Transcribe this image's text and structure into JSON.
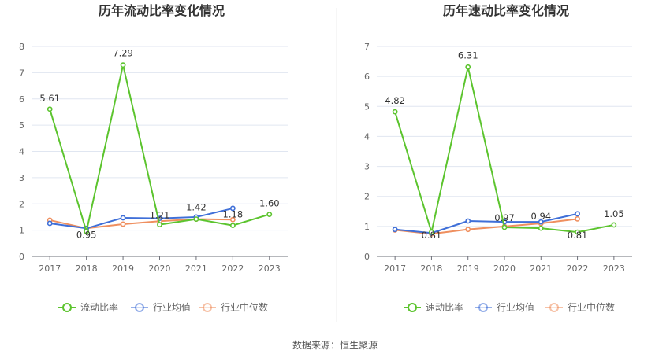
{
  "source_text": "数据来源：恒生聚源",
  "colors": {
    "main": "#5cc42e",
    "avg": "#3f6fd8",
    "median": "#ef8f5f",
    "grid": "#e0e6f1"
  },
  "chart_data": [
    {
      "type": "line",
      "title": "历年流动比率变化情况",
      "categories": [
        "2017",
        "2018",
        "2019",
        "2020",
        "2021",
        "2022",
        "2023"
      ],
      "ylim": [
        0,
        8
      ],
      "yticks": [
        0,
        1,
        2,
        3,
        4,
        5,
        6,
        7,
        8
      ],
      "series": [
        {
          "name": "流动比率",
          "key": "main",
          "values": [
            5.61,
            0.95,
            7.29,
            1.21,
            1.42,
            1.18,
            1.6
          ],
          "labels": [
            "5.61",
            "0.95",
            "7.29",
            "1.21",
            "1.42",
            "1.18",
            "1.60"
          ]
        },
        {
          "name": "行业均值",
          "key": "avg",
          "values": [
            1.26,
            1.07,
            1.47,
            1.45,
            1.5,
            1.83,
            null
          ]
        },
        {
          "name": "行业中位数",
          "key": "median",
          "values": [
            1.38,
            1.07,
            1.23,
            1.34,
            1.42,
            1.4,
            null
          ]
        }
      ],
      "legend_position": "bottom",
      "grid": true
    },
    {
      "type": "line",
      "title": "历年速动比率变化情况",
      "categories": [
        "2017",
        "2018",
        "2019",
        "2020",
        "2021",
        "2022",
        "2023"
      ],
      "ylim": [
        0,
        7
      ],
      "yticks": [
        0,
        1,
        2,
        3,
        4,
        5,
        6,
        7
      ],
      "series": [
        {
          "name": "速动比率",
          "key": "main",
          "values": [
            4.82,
            0.81,
            6.31,
            0.97,
            0.94,
            0.81,
            1.05
          ],
          "labels": [
            "4.82",
            "0.81",
            "6.31",
            "0.97",
            "0.94",
            "0.81",
            "1.05"
          ]
        },
        {
          "name": "行业均值",
          "key": "avg",
          "values": [
            0.9,
            0.78,
            1.18,
            1.15,
            1.15,
            1.42,
            null
          ]
        },
        {
          "name": "行业中位数",
          "key": "median",
          "values": [
            0.88,
            0.75,
            0.9,
            1.0,
            1.1,
            1.25,
            null
          ]
        }
      ],
      "legend_position": "bottom",
      "grid": true
    }
  ]
}
